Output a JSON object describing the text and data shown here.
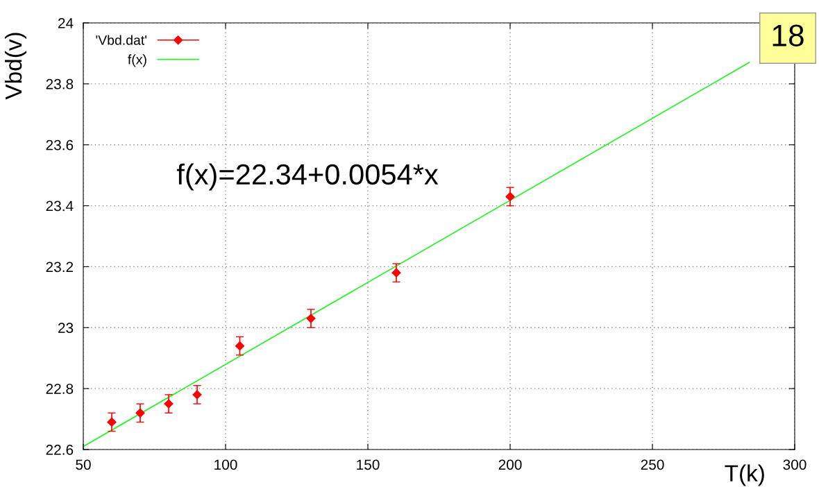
{
  "chart_data": {
    "type": "scatter",
    "xlabel": "T(k)",
    "ylabel": "Vbd(v)",
    "xlim": [
      50,
      300
    ],
    "xticks": [
      50,
      100,
      150,
      200,
      250,
      300
    ],
    "ylim": [
      22.6,
      24
    ],
    "yticks": [
      22.6,
      22.8,
      23,
      23.2,
      23.4,
      23.6,
      23.8,
      24
    ],
    "grid": true,
    "legend": "top left",
    "series": [
      {
        "name": "'Vbd.dat'",
        "marker": "diamond",
        "color": "#ff0000",
        "x": [
          60,
          70,
          80,
          90,
          105,
          130,
          160,
          200
        ],
        "values": [
          22.69,
          22.72,
          22.75,
          22.78,
          22.94,
          23.03,
          23.18,
          23.43
        ],
        "errors": [
          0.03,
          0.03,
          0.03,
          0.03,
          0.03,
          0.03,
          0.03,
          0.03
        ]
      },
      {
        "name": "f(x)",
        "type": "line",
        "color": "#33ee33",
        "x": [
          50,
          284
        ],
        "values": [
          22.61,
          23.87
        ]
      }
    ],
    "annotations": [
      "f(x)=22.34+0.0054*x",
      "18"
    ]
  }
}
